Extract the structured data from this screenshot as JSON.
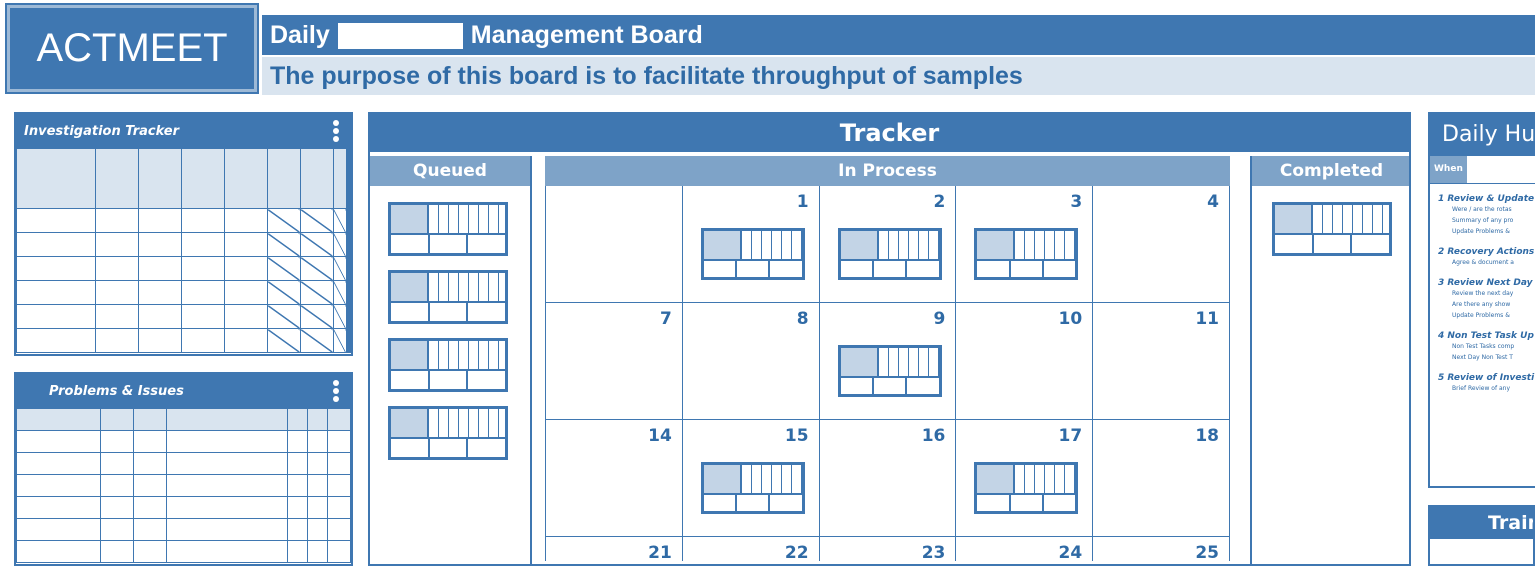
{
  "logo": "ACTMEET",
  "header": {
    "title_prefix": "Daily",
    "title_suffix": "Management Board",
    "subtitle": "The purpose of this board is to facilitate throughput of samples"
  },
  "investigation": {
    "title": "Investigation Tracker",
    "rows": 6
  },
  "problems": {
    "title": "Problems & Issues",
    "rows": 6
  },
  "tracker": {
    "title": "Tracker",
    "columns": {
      "queued": "Queued",
      "in_process": "In Process",
      "completed": "Completed"
    },
    "calendar": [
      [
        "",
        "1",
        "2",
        "3",
        "4"
      ],
      [
        "7",
        "8",
        "9",
        "10",
        "11"
      ],
      [
        "14",
        "15",
        "16",
        "17",
        "18"
      ],
      [
        "21",
        "22",
        "23",
        "24",
        "25"
      ]
    ],
    "cards_on_days": [
      "1",
      "2",
      "3",
      "9",
      "15",
      "17"
    ],
    "queued_cards": 4,
    "completed_cards": 1
  },
  "huddle": {
    "title": "Daily Hu",
    "when": "When",
    "items": [
      {
        "n": "1",
        "title": "Review & Update",
        "subs": [
          "Were / are the rotas",
          "Summary of any pro",
          "Update Problems &"
        ]
      },
      {
        "n": "2",
        "title": "Recovery Actions",
        "subs": [
          "Agree & document a"
        ]
      },
      {
        "n": "3",
        "title": "Review Next Day",
        "subs": [
          "Review the next day",
          "Are there any show",
          "Update Problems &"
        ]
      },
      {
        "n": "4",
        "title": "Non Test Task Up",
        "subs": [
          "Non Test Tasks comp",
          "Next Day Non Test T"
        ]
      },
      {
        "n": "5",
        "title": "Review of Investi",
        "subs": [
          "Brief Review of any"
        ]
      }
    ]
  },
  "training": {
    "title": "Train"
  },
  "colors": {
    "primary": "#3f77b1",
    "light": "#d9e4ef"
  }
}
